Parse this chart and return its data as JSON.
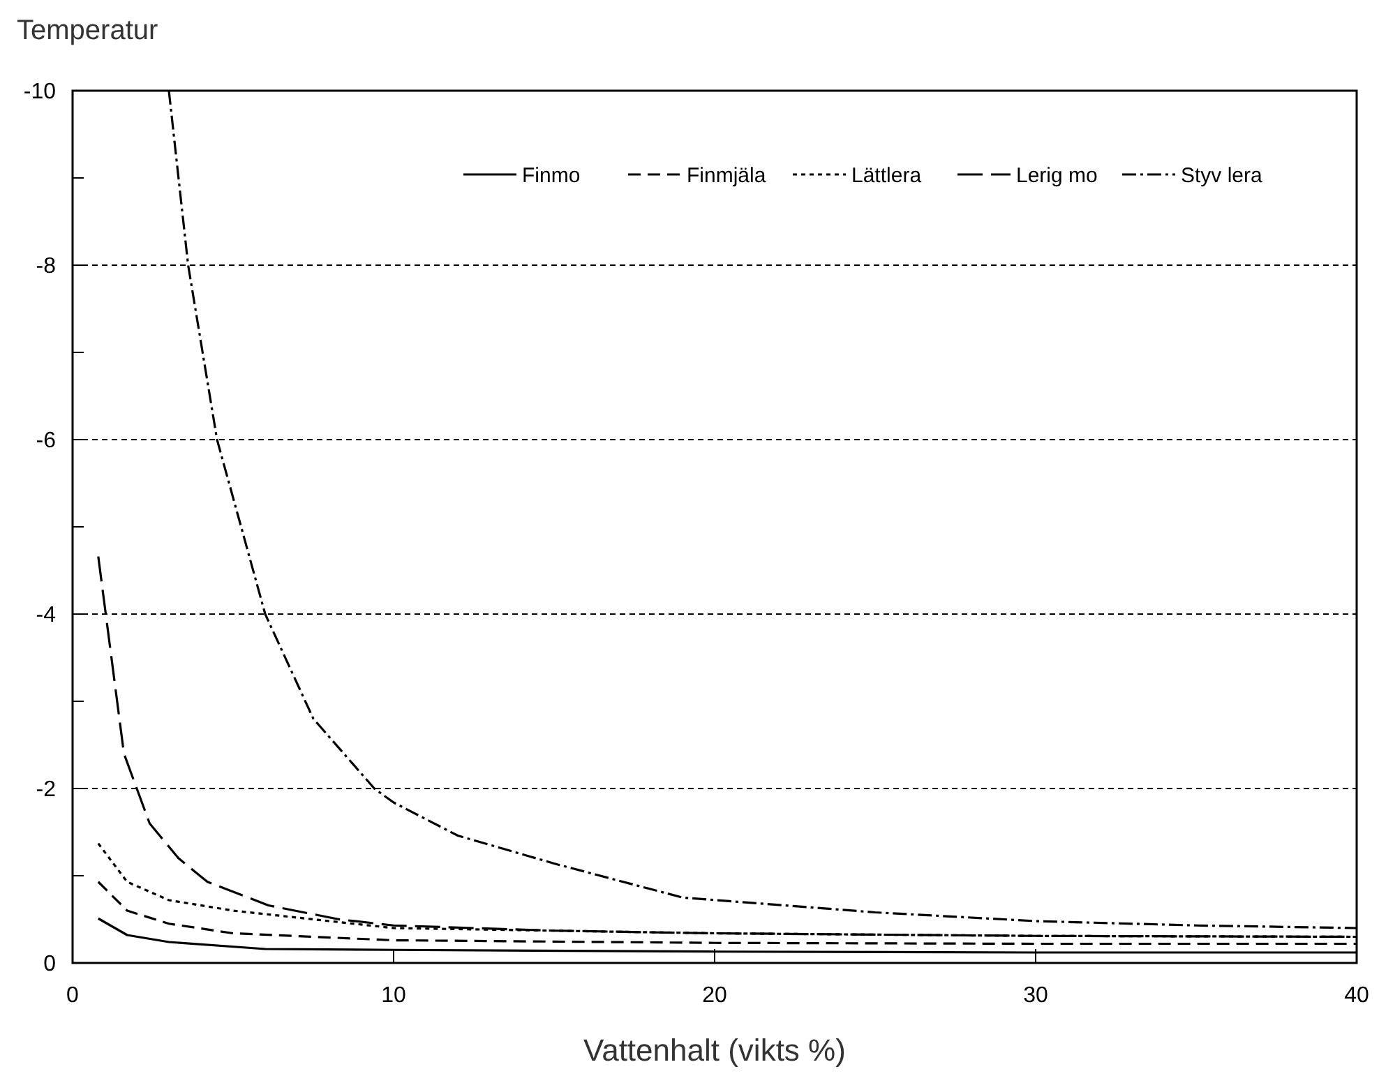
{
  "chart_data": {
    "type": "line",
    "ylabel": "Temperatur",
    "xlabel": "Vattenhalt (vikts %)",
    "xlim": [
      0,
      40
    ],
    "xticks": [
      0,
      10,
      20,
      30,
      40
    ],
    "ylim": [
      0,
      -10
    ],
    "yticks": [
      0,
      {
        "value": -1,
        "label": null
      },
      -2,
      {
        "value": -3,
        "label": null
      },
      -4,
      {
        "value": -5,
        "label": null
      },
      -6,
      {
        "value": -7,
        "label": null
      },
      -8,
      {
        "value": -9,
        "label": null
      },
      -10
    ],
    "grid": "y",
    "legend": "top right",
    "marker": "none",
    "series": [
      {
        "name": "Finmo",
        "color": "#000000",
        "line_style": "solid",
        "x": [
          0.8,
          1.7,
          3,
          6,
          10,
          20,
          30,
          40
        ],
        "values": [
          -0.51,
          -0.32,
          -0.24,
          -0.16,
          -0.15,
          -0.13,
          -0.12,
          -0.12
        ]
      },
      {
        "name": "Finmjäla",
        "color": "#000000",
        "line_style": "dashed",
        "x": [
          0.8,
          1.7,
          3,
          5,
          10,
          20,
          30,
          40
        ],
        "values": [
          -0.93,
          -0.6,
          -0.45,
          -0.34,
          -0.26,
          -0.23,
          -0.22,
          -0.22
        ]
      },
      {
        "name": "Lättlera",
        "color": "#000000",
        "line_style": "dotted",
        "x": [
          0.8,
          1.7,
          3,
          5,
          10,
          20,
          30,
          40
        ],
        "values": [
          -1.37,
          -0.93,
          -0.72,
          -0.6,
          -0.4,
          -0.34,
          -0.31,
          -0.3
        ]
      },
      {
        "name": "Lerig mo",
        "color": "#000000",
        "line_style": "dashed",
        "x": [
          0.8,
          1.6,
          2.4,
          3.3,
          4.2,
          6.1,
          8.3,
          10,
          15,
          20,
          30,
          40
        ],
        "values": [
          -4.66,
          -2.4,
          -1.6,
          -1.2,
          -0.93,
          -0.66,
          -0.5,
          -0.43,
          -0.37,
          -0.34,
          -0.31,
          -0.3
        ]
      },
      {
        "name": "Styv lera",
        "color": "#000000",
        "line_style": "dashed",
        "x": [
          3,
          3.6,
          4.5,
          6,
          7.5,
          9.4,
          10,
          12,
          15,
          19,
          25,
          30,
          35,
          40
        ],
        "values": [
          -10,
          -8,
          -6,
          -4,
          -2.8,
          -2,
          -1.84,
          -1.46,
          -1.14,
          -0.75,
          -0.58,
          -0.48,
          -0.43,
          -0.4
        ]
      }
    ]
  }
}
